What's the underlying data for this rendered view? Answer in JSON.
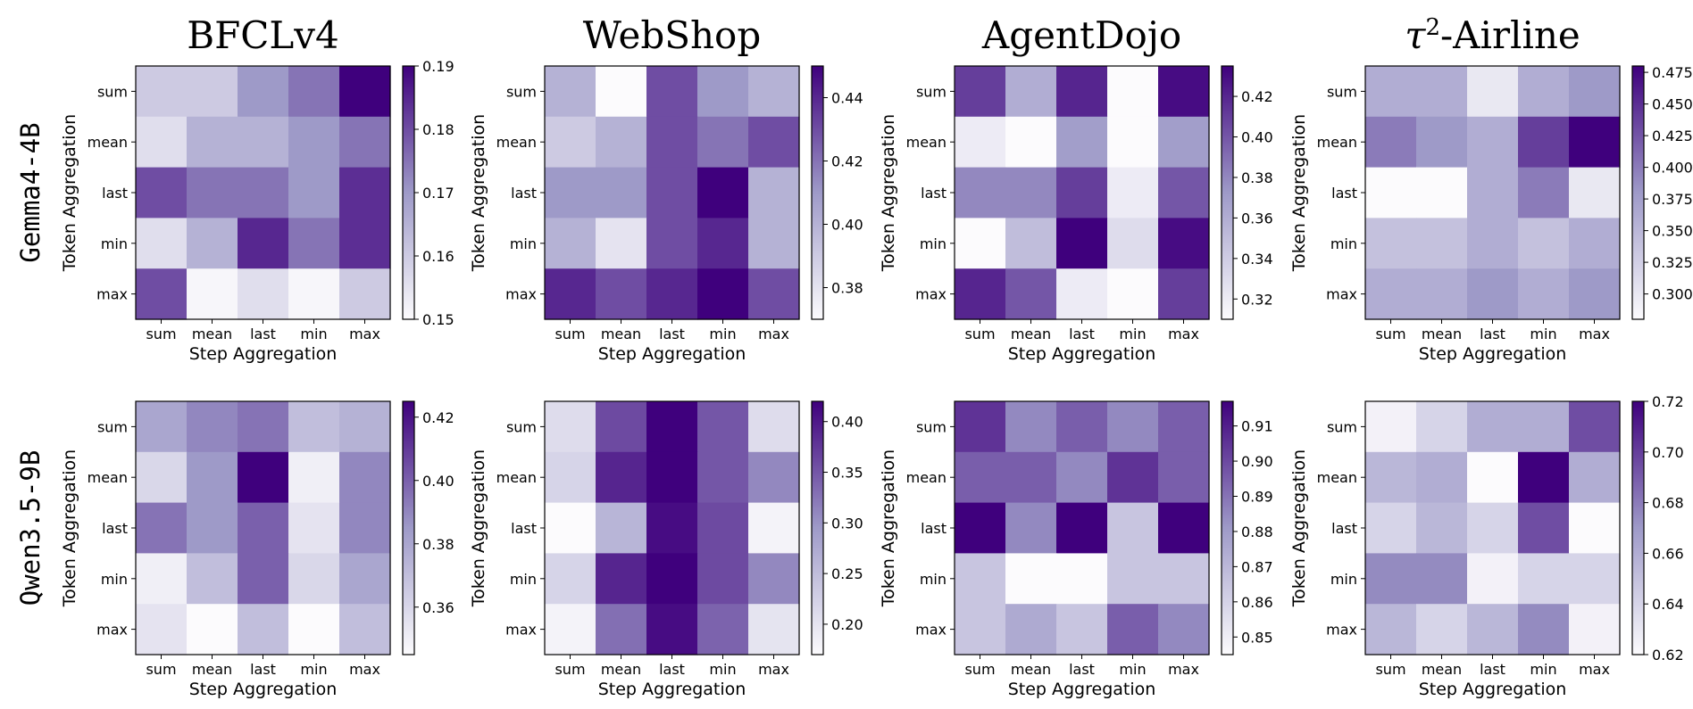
{
  "colormap": {
    "low": "#fcfbfd",
    "mid": "#9e9ac8",
    "high": "#3f007d"
  },
  "categories": [
    "sum",
    "mean",
    "last",
    "min",
    "max"
  ],
  "chart_data": [
    {
      "type": "heatmap",
      "title": "BFCLv4",
      "row_label": "Gemma4-4B",
      "xlabel": "Step Aggregation",
      "ylabel": "Token Aggregation",
      "x": [
        "sum",
        "mean",
        "last",
        "min",
        "max"
      ],
      "y": [
        "sum",
        "mean",
        "last",
        "min",
        "max"
      ],
      "vmin": 0.15,
      "vmax": 0.19,
      "cbar_ticks": [
        0.15,
        0.16,
        0.17,
        0.18,
        0.19
      ],
      "cbar_tick_labels": [
        "0.15",
        "0.16",
        "0.17",
        "0.18",
        "0.19"
      ],
      "values": [
        [
          0.16,
          0.16,
          0.17,
          0.175,
          0.19
        ],
        [
          0.156,
          0.165,
          0.165,
          0.17,
          0.175
        ],
        [
          0.18,
          0.175,
          0.175,
          0.17,
          0.184
        ],
        [
          0.156,
          0.165,
          0.185,
          0.175,
          0.184
        ],
        [
          0.18,
          0.151,
          0.156,
          0.151,
          0.16
        ]
      ]
    },
    {
      "type": "heatmap",
      "title": "WebShop",
      "row_label": "Gemma4-4B",
      "xlabel": "Step Aggregation",
      "ylabel": "Token Aggregation",
      "x": [
        "sum",
        "mean",
        "last",
        "min",
        "max"
      ],
      "y": [
        "sum",
        "mean",
        "last",
        "min",
        "max"
      ],
      "vmin": 0.37,
      "vmax": 0.45,
      "cbar_ticks": [
        0.38,
        0.4,
        0.42,
        0.44
      ],
      "cbar_tick_labels": [
        "0.38",
        "0.40",
        "0.42",
        "0.44"
      ],
      "values": [
        [
          0.4,
          0.37,
          0.43,
          0.41,
          0.4
        ],
        [
          0.39,
          0.4,
          0.43,
          0.42,
          0.43
        ],
        [
          0.41,
          0.41,
          0.43,
          0.45,
          0.4
        ],
        [
          0.4,
          0.38,
          0.43,
          0.44,
          0.4
        ],
        [
          0.44,
          0.43,
          0.44,
          0.45,
          0.43
        ]
      ]
    },
    {
      "type": "heatmap",
      "title": "AgentDojo",
      "row_label": "Gemma4-4B",
      "xlabel": "Step Aggregation",
      "ylabel": "Token Aggregation",
      "x": [
        "sum",
        "mean",
        "last",
        "min",
        "max"
      ],
      "y": [
        "sum",
        "mean",
        "last",
        "min",
        "max"
      ],
      "vmin": 0.31,
      "vmax": 0.435,
      "cbar_ticks": [
        0.32,
        0.34,
        0.36,
        0.38,
        0.4,
        0.42
      ],
      "cbar_tick_labels": [
        "0.32",
        "0.34",
        "0.36",
        "0.38",
        "0.40",
        "0.42"
      ],
      "values": [
        [
          0.41,
          0.36,
          0.42,
          0.31,
          0.43
        ],
        [
          0.32,
          0.31,
          0.37,
          0.31,
          0.37
        ],
        [
          0.38,
          0.38,
          0.41,
          0.32,
          0.4
        ],
        [
          0.31,
          0.35,
          0.435,
          0.33,
          0.43
        ],
        [
          0.42,
          0.4,
          0.32,
          0.31,
          0.41
        ]
      ]
    },
    {
      "type": "heatmap",
      "title": "τ²-Airline",
      "row_label": "Gemma4-4B",
      "xlabel": "Step Aggregation",
      "ylabel": "Token Aggregation",
      "x": [
        "sum",
        "mean",
        "last",
        "min",
        "max"
      ],
      "y": [
        "sum",
        "mean",
        "last",
        "min",
        "max"
      ],
      "vmin": 0.28,
      "vmax": 0.48,
      "cbar_ticks": [
        0.3,
        0.325,
        0.35,
        0.375,
        0.4,
        0.425,
        0.45,
        0.475
      ],
      "cbar_tick_labels": [
        "0.300",
        "0.325",
        "0.350",
        "0.375",
        "0.400",
        "0.425",
        "0.450",
        "0.475"
      ],
      "values": [
        [
          0.36,
          0.36,
          0.3,
          0.36,
          0.38
        ],
        [
          0.4,
          0.38,
          0.36,
          0.44,
          0.48
        ],
        [
          0.28,
          0.28,
          0.36,
          0.4,
          0.3
        ],
        [
          0.34,
          0.34,
          0.36,
          0.34,
          0.36
        ],
        [
          0.36,
          0.36,
          0.38,
          0.36,
          0.38
        ]
      ]
    },
    {
      "type": "heatmap",
      "title": "",
      "row_label": "Qwen3.5-9B",
      "xlabel": "Step Aggregation",
      "ylabel": "Token Aggregation",
      "x": [
        "sum",
        "mean",
        "last",
        "min",
        "max"
      ],
      "y": [
        "sum",
        "mean",
        "last",
        "min",
        "max"
      ],
      "vmin": 0.345,
      "vmax": 0.425,
      "cbar_ticks": [
        0.36,
        0.38,
        0.4,
        0.42
      ],
      "cbar_tick_labels": [
        "0.36",
        "0.38",
        "0.40",
        "0.42"
      ],
      "values": [
        [
          0.38,
          0.39,
          0.395,
          0.37,
          0.375
        ],
        [
          0.36,
          0.385,
          0.425,
          0.35,
          0.39
        ],
        [
          0.395,
          0.385,
          0.4,
          0.355,
          0.39
        ],
        [
          0.35,
          0.37,
          0.4,
          0.36,
          0.38
        ],
        [
          0.355,
          0.345,
          0.37,
          0.345,
          0.37
        ]
      ]
    },
    {
      "type": "heatmap",
      "title": "",
      "row_label": "Qwen3.5-9B",
      "xlabel": "Step Aggregation",
      "ylabel": "Token Aggregation",
      "x": [
        "sum",
        "mean",
        "last",
        "min",
        "max"
      ],
      "y": [
        "sum",
        "mean",
        "last",
        "min",
        "max"
      ],
      "vmin": 0.17,
      "vmax": 0.42,
      "cbar_ticks": [
        0.2,
        0.25,
        0.3,
        0.35,
        0.4
      ],
      "cbar_tick_labels": [
        "0.20",
        "0.25",
        "0.30",
        "0.35",
        "0.40"
      ],
      "values": [
        [
          0.21,
          0.36,
          0.42,
          0.35,
          0.21
        ],
        [
          0.22,
          0.39,
          0.42,
          0.35,
          0.31
        ],
        [
          0.17,
          0.26,
          0.41,
          0.36,
          0.18
        ],
        [
          0.22,
          0.39,
          0.42,
          0.36,
          0.31
        ],
        [
          0.18,
          0.33,
          0.41,
          0.34,
          0.2
        ]
      ]
    },
    {
      "type": "heatmap",
      "title": "",
      "row_label": "Qwen3.5-9B",
      "xlabel": "Step Aggregation",
      "ylabel": "Token Aggregation",
      "x": [
        "sum",
        "mean",
        "last",
        "min",
        "max"
      ],
      "y": [
        "sum",
        "mean",
        "last",
        "min",
        "max"
      ],
      "vmin": 0.845,
      "vmax": 0.917,
      "cbar_ticks": [
        0.85,
        0.86,
        0.87,
        0.88,
        0.89,
        0.9,
        0.91
      ],
      "cbar_tick_labels": [
        "0.85",
        "0.86",
        "0.87",
        "0.88",
        "0.89",
        "0.90",
        "0.91"
      ],
      "values": [
        [
          0.905,
          0.885,
          0.895,
          0.885,
          0.895
        ],
        [
          0.895,
          0.895,
          0.885,
          0.905,
          0.895
        ],
        [
          0.917,
          0.885,
          0.917,
          0.865,
          0.917
        ],
        [
          0.865,
          0.845,
          0.845,
          0.865,
          0.865
        ],
        [
          0.865,
          0.875,
          0.865,
          0.895,
          0.885
        ]
      ]
    },
    {
      "type": "heatmap",
      "title": "",
      "row_label": "Qwen3.5-9B",
      "xlabel": "Step Aggregation",
      "ylabel": "Token Aggregation",
      "x": [
        "sum",
        "mean",
        "last",
        "min",
        "max"
      ],
      "y": [
        "sum",
        "mean",
        "last",
        "min",
        "max"
      ],
      "vmin": 0.62,
      "vmax": 0.72,
      "cbar_ticks": [
        0.62,
        0.64,
        0.66,
        0.68,
        0.7,
        0.72
      ],
      "cbar_tick_labels": [
        "0.62",
        "0.64",
        "0.66",
        "0.68",
        "0.70",
        "0.72"
      ],
      "values": [
        [
          0.625,
          0.64,
          0.66,
          0.66,
          0.695
        ],
        [
          0.655,
          0.66,
          0.62,
          0.72,
          0.66
        ],
        [
          0.64,
          0.655,
          0.64,
          0.695,
          0.62
        ],
        [
          0.675,
          0.675,
          0.625,
          0.64,
          0.64
        ],
        [
          0.655,
          0.64,
          0.655,
          0.675,
          0.625
        ]
      ]
    }
  ]
}
